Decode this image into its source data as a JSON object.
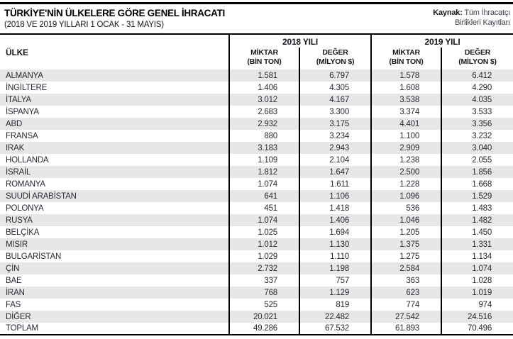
{
  "colors": {
    "rule_black": "#000000",
    "row_stripe_gray": "#e7e7e7",
    "body_text": "#262b33",
    "source_text": "#3a424c"
  },
  "masthead": {
    "title": "TÜRKİYE'NİN ÜLKELERE GÖRE GENEL İHRACATI",
    "subtitle": "(2018 VE 2019 YILLARI 1 OCAK - 31 MAYIS)",
    "source_label": "Kaynak:",
    "source_line1_text": "Tüm İhracatçı",
    "source_line2_text": "Birlikleri Kayıtları"
  },
  "table": {
    "country_col_header": "ÜLKE",
    "groups": [
      {
        "year": "2018 YILI",
        "miktar_l1": "MİKTAR",
        "miktar_l2": "(BİN TON)",
        "deger_l1": "DEĞER",
        "deger_l2": "(MİLYON $)"
      },
      {
        "year": "2019 YILI",
        "miktar_l1": "MİKTAR",
        "miktar_l2": "(BİN TON)",
        "deger_l1": "DEĞER",
        "deger_l2": "(MİLYON $)"
      }
    ]
  },
  "chart_data": {
    "type": "table",
    "title": "TÜRKİYE'NİN ÜLKELERE GÖRE GENEL İHRACATI",
    "subtitle": "(2018 VE 2019 YILLARI 1 OCAK - 31 MAYIS)",
    "source": "Kaynak: Tüm İhracatçı Birlikleri Kayıtları",
    "columns": [
      "ÜLKE",
      "2018 YILI MİKTAR (BİN TON)",
      "2018 YILI DEĞER (MİLYON $)",
      "2019 YILI MİKTAR (BİN TON)",
      "2019 YILI DEĞER (MİLYON $)"
    ],
    "rows": [
      [
        "ALMANYA",
        "1.581",
        "6.797",
        "1.578",
        "6.412"
      ],
      [
        "İNGİLTERE",
        "1.406",
        "4.305",
        "1.608",
        "4.290"
      ],
      [
        "İTALYA",
        "3.012",
        "4.167",
        "3.538",
        "4.035"
      ],
      [
        "İSPANYA",
        "2.683",
        "3.300",
        "3.374",
        "3.533"
      ],
      [
        "ABD",
        "2.932",
        "3.175",
        "4.401",
        "3.356"
      ],
      [
        "FRANSA",
        "880",
        "3.234",
        "1.100",
        "3.232"
      ],
      [
        "IRAK",
        "3.183",
        "2.943",
        "2.909",
        "3.040"
      ],
      [
        "HOLLANDA",
        "1.109",
        "2.104",
        "1.238",
        "2.055"
      ],
      [
        "İSRAİL",
        "1.812",
        "1.647",
        "2.500",
        "1.856"
      ],
      [
        "ROMANYA",
        "1.074",
        "1.611",
        "1.228",
        "1.668"
      ],
      [
        "SUUDİ ARABİSTAN",
        "641",
        "1.106",
        "1.096",
        "1.529"
      ],
      [
        "POLONYA",
        "451",
        "1.418",
        "536",
        "1.483"
      ],
      [
        "RUSYA",
        "1.074",
        "1.406",
        "1.046",
        "1.482"
      ],
      [
        "BELÇİKA",
        "1.025",
        "1.694",
        "1.205",
        "1.450"
      ],
      [
        "MISIR",
        "1.012",
        "1.130",
        "1.375",
        "1.331"
      ],
      [
        "BULGARİSTAN",
        "1.029",
        "1.110",
        "1.275",
        "1.134"
      ],
      [
        "ÇİN",
        "2.732",
        "1.198",
        "2.584",
        "1.074"
      ],
      [
        "BAE",
        "337",
        "757",
        "363",
        "1.028"
      ],
      [
        "İRAN",
        "768",
        "1.129",
        "623",
        "1.019"
      ],
      [
        "FAS",
        "525",
        "819",
        "774",
        "974"
      ],
      [
        "DİĞER",
        "20.021",
        "22.482",
        "27.542",
        "24.516"
      ],
      [
        "TOPLAM",
        "49.286",
        "67.532",
        "61.893",
        "70.496"
      ]
    ]
  }
}
